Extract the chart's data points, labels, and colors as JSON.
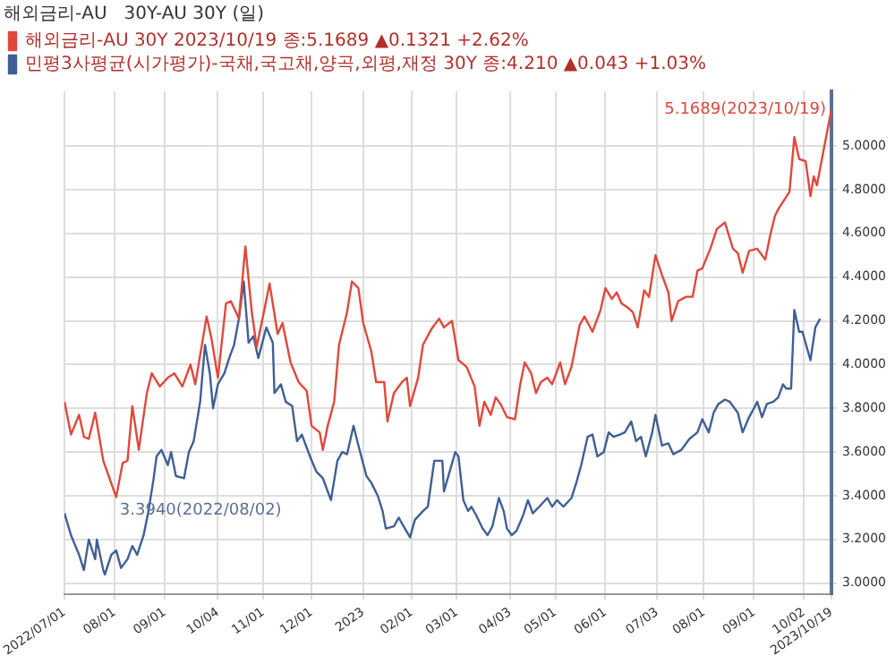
{
  "chart_data": {
    "type": "line",
    "title": "해외금리-AU   30Y-AU 30Y (일)",
    "legend": "top left",
    "grid": true,
    "marker": "none",
    "line_style": "solid",
    "xlim": [
      "2022-07-01",
      "2023-10-19"
    ],
    "xticks": [
      {
        "value": "2022-07-01",
        "label": "2022/07/01"
      },
      {
        "value": "2022-08-01",
        "label": "08/01"
      },
      {
        "value": "2022-09-01",
        "label": "09/01"
      },
      {
        "value": "2022-10-04",
        "label": "10/04"
      },
      {
        "value": "2022-11-01",
        "label": "11/01"
      },
      {
        "value": "2022-12-01",
        "label": "12/01"
      },
      {
        "value": "2023-01-02",
        "label": "2023"
      },
      {
        "value": "2023-02-01",
        "label": "02/01"
      },
      {
        "value": "2023-03-01",
        "label": "03/01"
      },
      {
        "value": "2023-04-03",
        "label": "04/03"
      },
      {
        "value": "2023-05-01",
        "label": "05/01"
      },
      {
        "value": "2023-06-01",
        "label": "06/01"
      },
      {
        "value": "2023-07-03",
        "label": "07/03"
      },
      {
        "value": "2023-08-01",
        "label": "08/01"
      },
      {
        "value": "2023-09-01",
        "label": "09/01"
      },
      {
        "value": "2023-10-02",
        "label": "10/02"
      },
      {
        "value": "2023-10-19",
        "label": "2023/10/19"
      }
    ],
    "ylim": [
      2.95,
      5.25
    ],
    "yticks": [
      {
        "value": 3,
        "label": "3.0000"
      },
      {
        "value": 3.2,
        "label": "3.2000"
      },
      {
        "value": 3.4,
        "label": "3.4000"
      },
      {
        "value": 3.6,
        "label": "3.6000"
      },
      {
        "value": 3.8,
        "label": "3.8000"
      },
      {
        "value": 4,
        "label": "4.0000"
      },
      {
        "value": 4.2,
        "label": "4.2000"
      },
      {
        "value": 4.4,
        "label": "4.4000"
      },
      {
        "value": 4.6,
        "label": "4.6000"
      },
      {
        "value": 4.8,
        "label": "4.8000"
      },
      {
        "value": 5,
        "label": "5.0000"
      }
    ],
    "annotations": [
      {
        "text": "5.1689(2023/10/19)",
        "x": "2023-10-19",
        "y": 5.1689
      },
      {
        "text": "3.3940(2022/08/02)",
        "x": "2022-08-02",
        "y": 3.394
      }
    ],
    "series": [
      {
        "name": "해외금리-AU 30Y 2023/10/19 종:5.1689 ▲0.1321 +2.62%",
        "color": "#e0483c",
        "x": [
          "2022-07-01",
          "2022-07-05",
          "2022-07-10",
          "2022-07-13",
          "2022-07-16",
          "2022-07-20",
          "2022-07-25",
          "2022-08-02",
          "2022-08-06",
          "2022-08-09",
          "2022-08-12",
          "2022-08-16",
          "2022-08-21",
          "2022-08-24",
          "2022-08-29",
          "2022-09-03",
          "2022-09-07",
          "2022-09-12",
          "2022-09-17",
          "2022-09-20",
          "2022-09-27",
          "2022-09-30",
          "2022-10-04",
          "2022-10-09",
          "2022-10-12",
          "2022-10-17",
          "2022-10-21",
          "2022-10-25",
          "2022-10-28",
          "2022-11-02",
          "2022-11-05",
          "2022-11-10",
          "2022-11-13",
          "2022-11-18",
          "2022-11-23",
          "2022-11-28",
          "2022-12-01",
          "2022-12-06",
          "2022-12-08",
          "2022-12-11",
          "2022-12-15",
          "2022-12-18",
          "2022-12-23",
          "2022-12-26",
          "2022-12-30",
          "2023-01-02",
          "2023-01-07",
          "2023-01-10",
          "2023-01-15",
          "2023-01-17",
          "2023-01-21",
          "2023-01-26",
          "2023-01-29",
          "2023-01-31",
          "2023-02-05",
          "2023-02-08",
          "2023-02-13",
          "2023-02-18",
          "2023-02-21",
          "2023-02-26",
          "2023-03-02",
          "2023-03-07",
          "2023-03-12",
          "2023-03-15",
          "2023-03-18",
          "2023-03-22",
          "2023-03-25",
          "2023-03-28",
          "2023-04-01",
          "2023-04-06",
          "2023-04-09",
          "2023-04-12",
          "2023-04-16",
          "2023-04-19",
          "2023-04-22",
          "2023-04-26",
          "2023-04-29",
          "2023-05-04",
          "2023-05-07",
          "2023-05-11",
          "2023-05-16",
          "2023-05-19",
          "2023-05-24",
          "2023-05-29",
          "2023-06-01",
          "2023-06-05",
          "2023-06-08",
          "2023-06-11",
          "2023-06-15",
          "2023-06-18",
          "2023-06-21",
          "2023-06-25",
          "2023-06-28",
          "2023-07-02",
          "2023-07-06",
          "2023-07-10",
          "2023-07-12",
          "2023-07-16",
          "2023-07-21",
          "2023-07-25",
          "2023-07-28",
          "2023-07-31",
          "2023-08-05",
          "2023-08-09",
          "2023-08-14",
          "2023-08-19",
          "2023-08-22",
          "2023-08-25",
          "2023-08-29",
          "2023-09-03",
          "2023-09-08",
          "2023-09-11",
          "2023-09-14",
          "2023-09-16",
          "2023-09-23",
          "2023-09-26",
          "2023-09-29",
          "2023-10-03",
          "2023-10-06",
          "2023-10-08",
          "2023-10-10",
          "2023-10-19"
        ],
        "values": [
          3.83,
          3.68,
          3.77,
          3.67,
          3.66,
          3.78,
          3.56,
          3.394,
          3.55,
          3.56,
          3.81,
          3.61,
          3.87,
          3.96,
          3.9,
          3.94,
          3.96,
          3.9,
          4.0,
          3.91,
          4.22,
          4.12,
          3.94,
          4.28,
          4.29,
          4.21,
          4.54,
          4.24,
          4.08,
          4.26,
          4.37,
          4.14,
          4.19,
          4.01,
          3.92,
          3.88,
          3.72,
          3.69,
          3.61,
          3.72,
          3.83,
          4.09,
          4.24,
          4.38,
          4.35,
          4.19,
          4.06,
          3.92,
          3.92,
          3.74,
          3.87,
          3.92,
          3.94,
          3.81,
          3.94,
          4.09,
          4.16,
          4.21,
          4.17,
          4.2,
          4.02,
          3.99,
          3.9,
          3.72,
          3.83,
          3.77,
          3.85,
          3.82,
          3.76,
          3.75,
          3.9,
          4.01,
          3.96,
          3.87,
          3.92,
          3.94,
          3.91,
          4.01,
          3.91,
          3.99,
          4.18,
          4.22,
          4.15,
          4.25,
          4.35,
          4.3,
          4.33,
          4.28,
          4.26,
          4.24,
          4.17,
          4.34,
          4.31,
          4.5,
          4.41,
          4.33,
          4.2,
          4.29,
          4.31,
          4.31,
          4.43,
          4.44,
          4.53,
          4.62,
          4.65,
          4.53,
          4.51,
          4.42,
          4.52,
          4.53,
          4.48,
          4.59,
          4.68,
          4.71,
          4.79,
          5.04,
          4.94,
          4.93,
          4.77,
          4.86,
          4.82,
          5.1689
        ]
      },
      {
        "name": "민평3사평균(시가평가)-국채,국고채,양곡,외평,재정 30Y 종:4.210 ▲0.043 +1.03%",
        "color": "#3f5f94",
        "x": [
          "2022-07-01",
          "2022-07-05",
          "2022-07-10",
          "2022-07-13",
          "2022-07-16",
          "2022-07-20",
          "2022-07-21",
          "2022-07-25",
          "2022-07-26",
          "2022-07-30",
          "2022-08-02",
          "2022-08-05",
          "2022-08-09",
          "2022-08-12",
          "2022-08-15",
          "2022-08-19",
          "2022-08-22",
          "2022-08-25",
          "2022-08-27",
          "2022-08-30",
          "2022-09-03",
          "2022-09-05",
          "2022-09-08",
          "2022-09-13",
          "2022-09-16",
          "2022-09-19",
          "2022-09-23",
          "2022-09-26",
          "2022-09-29",
          "2022-10-01",
          "2022-10-04",
          "2022-10-08",
          "2022-10-11",
          "2022-10-14",
          "2022-10-17",
          "2022-10-20",
          "2022-10-23",
          "2022-10-26",
          "2022-10-29",
          "2022-11-03",
          "2022-11-07",
          "2022-11-08",
          "2022-11-12",
          "2022-11-15",
          "2022-11-19",
          "2022-11-22",
          "2022-11-25",
          "2022-11-30",
          "2022-12-04",
          "2022-12-08",
          "2022-12-13",
          "2022-12-17",
          "2022-12-20",
          "2022-12-23",
          "2022-12-27",
          "2022-12-30",
          "2023-01-04",
          "2023-01-07",
          "2023-01-11",
          "2023-01-14",
          "2023-01-16",
          "2023-01-21",
          "2023-01-24",
          "2023-01-27",
          "2023-01-31",
          "2023-02-03",
          "2023-02-08",
          "2023-02-11",
          "2023-02-15",
          "2023-02-20",
          "2023-02-21",
          "2023-02-28",
          "2023-03-02",
          "2023-03-05",
          "2023-03-08",
          "2023-03-10",
          "2023-03-13",
          "2023-03-17",
          "2023-03-20",
          "2023-03-23",
          "2023-03-27",
          "2023-03-30",
          "2023-04-01",
          "2023-04-04",
          "2023-04-07",
          "2023-04-11",
          "2023-04-14",
          "2023-04-17",
          "2023-04-21",
          "2023-04-26",
          "2023-04-29",
          "2023-05-02",
          "2023-05-06",
          "2023-05-11",
          "2023-05-14",
          "2023-05-17",
          "2023-05-21",
          "2023-05-24",
          "2023-05-27",
          "2023-05-31",
          "2023-06-03",
          "2023-06-06",
          "2023-06-10",
          "2023-06-13",
          "2023-06-17",
          "2023-06-20",
          "2023-06-23",
          "2023-06-26",
          "2023-06-30",
          "2023-07-02",
          "2023-07-06",
          "2023-07-10",
          "2023-07-13",
          "2023-07-18",
          "2023-07-23",
          "2023-07-28",
          "2023-07-31",
          "2023-08-04",
          "2023-08-07",
          "2023-08-10",
          "2023-08-14",
          "2023-08-17",
          "2023-08-22",
          "2023-08-25",
          "2023-08-29",
          "2023-09-01",
          "2023-09-03",
          "2023-09-06",
          "2023-09-09",
          "2023-09-13",
          "2023-09-16",
          "2023-09-19",
          "2023-09-21",
          "2023-09-24",
          "2023-09-26",
          "2023-09-29",
          "2023-10-01",
          "2023-10-06",
          "2023-10-09",
          "2023-10-12"
        ],
        "values": [
          3.32,
          3.22,
          3.13,
          3.06,
          3.2,
          3.11,
          3.2,
          3.06,
          3.04,
          3.13,
          3.15,
          3.07,
          3.11,
          3.17,
          3.13,
          3.22,
          3.33,
          3.47,
          3.58,
          3.61,
          3.54,
          3.6,
          3.49,
          3.48,
          3.6,
          3.65,
          3.83,
          4.09,
          3.96,
          3.8,
          3.91,
          3.96,
          4.03,
          4.09,
          4.21,
          4.38,
          4.1,
          4.13,
          4.03,
          4.17,
          4.1,
          3.87,
          3.91,
          3.83,
          3.81,
          3.65,
          3.68,
          3.58,
          3.51,
          3.48,
          3.38,
          3.56,
          3.6,
          3.59,
          3.72,
          3.63,
          3.49,
          3.46,
          3.4,
          3.33,
          3.25,
          3.26,
          3.3,
          3.26,
          3.21,
          3.29,
          3.33,
          3.35,
          3.56,
          3.56,
          3.42,
          3.6,
          3.58,
          3.38,
          3.33,
          3.35,
          3.31,
          3.25,
          3.22,
          3.26,
          3.39,
          3.33,
          3.25,
          3.22,
          3.24,
          3.31,
          3.38,
          3.32,
          3.35,
          3.39,
          3.35,
          3.38,
          3.35,
          3.39,
          3.46,
          3.54,
          3.67,
          3.68,
          3.58,
          3.6,
          3.69,
          3.67,
          3.68,
          3.69,
          3.74,
          3.65,
          3.67,
          3.58,
          3.69,
          3.77,
          3.63,
          3.64,
          3.59,
          3.61,
          3.66,
          3.69,
          3.75,
          3.69,
          3.78,
          3.82,
          3.84,
          3.83,
          3.78,
          3.69,
          3.76,
          3.8,
          3.83,
          3.76,
          3.82,
          3.83,
          3.85,
          3.91,
          3.89,
          3.89,
          4.25,
          4.15,
          4.15,
          4.02,
          4.17,
          4.21
        ]
      }
    ]
  }
}
